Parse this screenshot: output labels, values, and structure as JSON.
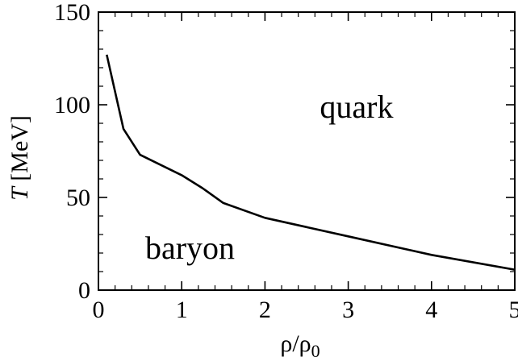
{
  "chart_data": {
    "type": "line",
    "title": "",
    "xlabel": "ρ/ρ0",
    "xlabel_main": "ρ/ρ",
    "xlabel_sub": "0",
    "ylabel": "T [MeV]",
    "ylabel_var": "T",
    "ylabel_unit": " [MeV]",
    "xlim": [
      0,
      5
    ],
    "ylim": [
      0,
      150
    ],
    "x_ticks": [
      0,
      1,
      2,
      3,
      4,
      5
    ],
    "y_ticks": [
      0,
      50,
      100,
      150
    ],
    "x_tick_labels": [
      "0",
      "1",
      "2",
      "3",
      "4",
      "5"
    ],
    "y_tick_labels": [
      "0",
      "50",
      "100",
      "150"
    ],
    "grid": false,
    "series": [
      {
        "x": [
          0.1,
          0.3,
          0.5,
          1.0,
          1.25,
          1.5,
          2.0,
          3.0,
          4.0,
          5.0
        ],
        "y": [
          127,
          87,
          73,
          62,
          55,
          47,
          39,
          29,
          19,
          11
        ]
      }
    ],
    "annotations": [
      {
        "text": "quark",
        "x": 3.1,
        "y": 93
      },
      {
        "text": "baryon",
        "x": 1.1,
        "y": 17
      }
    ],
    "colors": {
      "line": "#000000",
      "axes": "#000000",
      "background": "#ffffff"
    }
  }
}
